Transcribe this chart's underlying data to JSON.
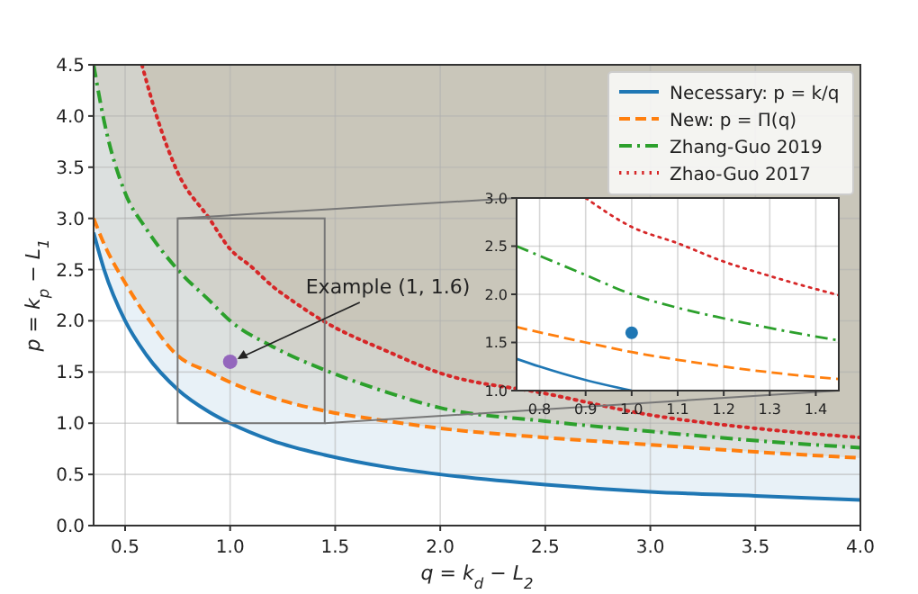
{
  "chart_data": [
    {
      "type": "line",
      "xlabel": "q = k$_{d}$ − L$_{2}$",
      "ylabel": "p = k$_{p}$ − L$_{1}$",
      "xlim": [
        0.35,
        4
      ],
      "xticks": [
        {
          "value": 0.5,
          "label": "0.5"
        },
        {
          "value": 1,
          "label": "1.0"
        },
        {
          "value": 1.5,
          "label": "1.5"
        },
        {
          "value": 2,
          "label": "2.0"
        },
        {
          "value": 2.5,
          "label": "2.5"
        },
        {
          "value": 3,
          "label": "3.0"
        },
        {
          "value": 3.5,
          "label": "3.5"
        },
        {
          "value": 4,
          "label": "4.0"
        }
      ],
      "ylim": [
        0,
        4.5
      ],
      "yticks": [
        {
          "value": 0,
          "label": "0.0"
        },
        {
          "value": 0.5,
          "label": "0.5"
        },
        {
          "value": 1,
          "label": "1.0"
        },
        {
          "value": 1.5,
          "label": "1.5"
        },
        {
          "value": 2,
          "label": "2.0"
        },
        {
          "value": 2.5,
          "label": "2.5"
        },
        {
          "value": 3,
          "label": "3.0"
        },
        {
          "value": 3.5,
          "label": "3.5"
        },
        {
          "value": 4,
          "label": "4.0"
        },
        {
          "value": 4.5,
          "label": "4.5"
        }
      ],
      "grid": true,
      "legend": "top right",
      "series": [
        {
          "name": "Necessary: p = k/q",
          "color": "#1f77b4",
          "line_style": "solid",
          "x": [
            0.35,
            0.4,
            0.5,
            0.6,
            0.75,
            0.9,
            1.0,
            1.2,
            1.45,
            1.75,
            2.0,
            2.5,
            3.0,
            3.5,
            4.0
          ],
          "values": [
            2.86,
            2.5,
            2.0,
            1.67,
            1.33,
            1.11,
            1.0,
            0.83,
            0.69,
            0.57,
            0.5,
            0.4,
            0.33,
            0.29,
            0.25
          ]
        },
        {
          "name": "New: p = Π(q)",
          "color": "#ff7f0e",
          "line_style": "dashed",
          "x": [
            0.35,
            0.4,
            0.5,
            0.6,
            0.75,
            0.9,
            1.0,
            1.2,
            1.45,
            1.75,
            2.0,
            2.5,
            3.0,
            3.5,
            4.0
          ],
          "values": [
            3.0,
            2.75,
            2.37,
            2.05,
            1.66,
            1.5,
            1.4,
            1.25,
            1.12,
            1.02,
            0.95,
            0.86,
            0.79,
            0.72,
            0.66
          ]
        },
        {
          "name": "Zhang-Guo 2019",
          "color": "#2ca02c",
          "line_style": "dashdot",
          "x": [
            0.35,
            0.4,
            0.5,
            0.6,
            0.75,
            0.9,
            1.0,
            1.2,
            1.45,
            1.75,
            2.0,
            2.5,
            3.0,
            3.5,
            4.0
          ],
          "values": [
            4.5,
            3.95,
            3.25,
            2.9,
            2.5,
            2.2,
            2.0,
            1.75,
            1.52,
            1.3,
            1.15,
            1.02,
            0.92,
            0.83,
            0.76
          ]
        },
        {
          "name": "Zhao-Guo 2017",
          "color": "#d62728",
          "line_style": "dotted",
          "x": [
            0.58,
            0.65,
            0.75,
            0.9,
            1.0,
            1.1,
            1.2,
            1.3,
            1.45,
            1.75,
            2.0,
            2.5,
            3.0,
            3.5,
            4.0
          ],
          "values": [
            4.5,
            4.0,
            3.45,
            3.0,
            2.7,
            2.53,
            2.34,
            2.19,
            1.99,
            1.7,
            1.49,
            1.29,
            1.08,
            0.95,
            0.86
          ]
        },
        {
          "type": "scatter",
          "color": "#9467bd",
          "marker": "circle",
          "x": [
            1
          ],
          "values": [
            1.6
          ]
        }
      ],
      "annotations": [
        {
          "text": "Example (1, 1.6)",
          "x": 1,
          "y": 1.6
        }
      ]
    },
    {
      "type": "line",
      "xlim": [
        0.75,
        1.45
      ],
      "xticks": [
        {
          "value": 0.8,
          "label": "0.8"
        },
        {
          "value": 0.9,
          "label": "0.9"
        },
        {
          "value": 1,
          "label": "1.0"
        },
        {
          "value": 1.1,
          "label": "1.1"
        },
        {
          "value": 1.2,
          "label": "1.2"
        },
        {
          "value": 1.3,
          "label": "1.3"
        },
        {
          "value": 1.4,
          "label": "1.4"
        }
      ],
      "ylim": [
        1,
        3
      ],
      "yticks": [
        {
          "value": 1,
          "label": "1.0"
        },
        {
          "value": 1.5,
          "label": "1.5"
        },
        {
          "value": 2,
          "label": "2.0"
        },
        {
          "value": 2.5,
          "label": "2.5"
        },
        {
          "value": 3,
          "label": "3.0"
        }
      ],
      "grid": true,
      "series": [
        {
          "color": "#1f77b4",
          "line_style": "solid",
          "x": [
            0.75,
            0.8,
            0.9,
            1.0
          ],
          "values": [
            1.33,
            1.25,
            1.11,
            1.0
          ]
        },
        {
          "color": "#ff7f0e",
          "line_style": "dashed",
          "x": [
            0.75,
            0.9,
            1.0,
            1.1,
            1.2,
            1.3,
            1.45
          ],
          "values": [
            1.66,
            1.5,
            1.4,
            1.32,
            1.25,
            1.19,
            1.12
          ]
        },
        {
          "color": "#2ca02c",
          "line_style": "dashdot",
          "x": [
            0.75,
            0.9,
            1.0,
            1.1,
            1.2,
            1.3,
            1.45
          ],
          "values": [
            2.5,
            2.2,
            2.0,
            1.86,
            1.75,
            1.65,
            1.52
          ]
        },
        {
          "color": "#d62728",
          "line_style": "dotted",
          "x": [
            0.9,
            1.0,
            1.1,
            1.2,
            1.3,
            1.45
          ],
          "values": [
            3.0,
            2.7,
            2.53,
            2.34,
            2.19,
            1.99
          ]
        },
        {
          "type": "scatter",
          "color": "#1f77b4",
          "marker": "circle",
          "x": [
            1
          ],
          "values": [
            1.6
          ]
        }
      ]
    }
  ]
}
